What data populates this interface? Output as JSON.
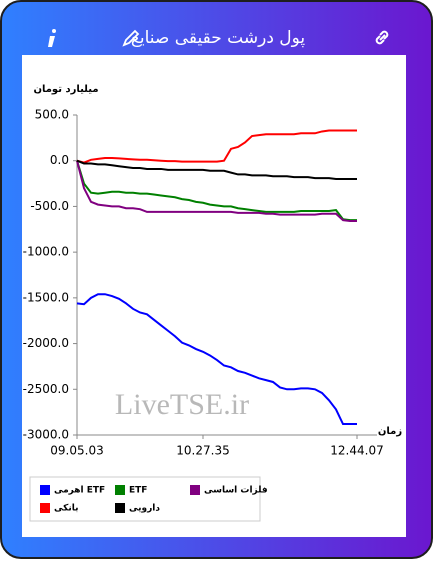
{
  "header": {
    "title": "پول درشت حقیقی صنایع"
  },
  "chart_data": {
    "type": "line",
    "y_label": "میلیارد تومان",
    "x_label": "زمان",
    "watermark": "LiveTSE.ir",
    "xlim": [
      0,
      40
    ],
    "xticks": [
      {
        "value": 0,
        "label": "09.05.03"
      },
      {
        "value": 18,
        "label": "10.27.35"
      },
      {
        "value": 40,
        "label": "12.44.07"
      }
    ],
    "ylim": [
      -3000,
      500
    ],
    "yticks": [
      {
        "value": 500,
        "label": "500.0"
      },
      {
        "value": 0,
        "label": "0.0"
      },
      {
        "value": -500,
        "label": "-500.0"
      },
      {
        "value": -1000,
        "label": "-1000.0"
      },
      {
        "value": -1500,
        "label": "-1500.0"
      },
      {
        "value": -2000,
        "label": "-2000.0"
      },
      {
        "value": -2500,
        "label": "-2500.0"
      },
      {
        "value": -3000,
        "label": "-3000.0"
      }
    ],
    "grid": false,
    "series": [
      {
        "name": "اهرمی ETF",
        "color": "#0000ff",
        "values": [
          -1560,
          -1570,
          -1500,
          -1460,
          -1460,
          -1480,
          -1510,
          -1560,
          -1620,
          -1660,
          -1680,
          -1740,
          -1800,
          -1860,
          -1920,
          -1990,
          -2020,
          -2060,
          -2090,
          -2130,
          -2180,
          -2240,
          -2260,
          -2300,
          -2320,
          -2350,
          -2380,
          -2400,
          -2420,
          -2480,
          -2500,
          -2500,
          -2490,
          -2490,
          -2500,
          -2540,
          -2620,
          -2720,
          -2880,
          -2880,
          -2880
        ]
      },
      {
        "name": "ETF",
        "color": "#008000",
        "values": [
          0,
          -250,
          -350,
          -360,
          -350,
          -340,
          -340,
          -350,
          -350,
          -360,
          -360,
          -370,
          -380,
          -390,
          -400,
          -420,
          -430,
          -450,
          -460,
          -480,
          -490,
          -500,
          -500,
          -520,
          -530,
          -540,
          -550,
          -560,
          -560,
          -560,
          -560,
          -560,
          -550,
          -550,
          -550,
          -550,
          -550,
          -540,
          -640,
          -650,
          -650
        ]
      },
      {
        "name": "فلزات اساسی",
        "color": "#800080",
        "values": [
          0,
          -300,
          -450,
          -480,
          -490,
          -500,
          -500,
          -520,
          -520,
          -530,
          -560,
          -560,
          -560,
          -560,
          -560,
          -560,
          -560,
          -560,
          -560,
          -560,
          -560,
          -560,
          -560,
          -570,
          -570,
          -570,
          -570,
          -580,
          -580,
          -590,
          -590,
          -590,
          -590,
          -590,
          -590,
          -580,
          -580,
          -580,
          -650,
          -660,
          -660
        ]
      },
      {
        "name": "بانکی",
        "color": "#ff0000",
        "values": [
          0,
          -20,
          10,
          20,
          30,
          30,
          25,
          20,
          15,
          10,
          10,
          5,
          0,
          -5,
          -5,
          -10,
          -10,
          -10,
          -10,
          -10,
          -10,
          0,
          130,
          150,
          200,
          270,
          280,
          290,
          290,
          290,
          290,
          290,
          300,
          300,
          300,
          320,
          330,
          330,
          330,
          330,
          330
        ]
      },
      {
        "name": "دارویی",
        "color": "#000000",
        "values": [
          0,
          -30,
          -30,
          -40,
          -40,
          -50,
          -60,
          -70,
          -80,
          -80,
          -90,
          -90,
          -90,
          -100,
          -100,
          -100,
          -100,
          -100,
          -100,
          -110,
          -110,
          -110,
          -130,
          -150,
          -150,
          -160,
          -160,
          -160,
          -170,
          -170,
          -170,
          -180,
          -180,
          -180,
          -190,
          -190,
          -190,
          -200,
          -200,
          -200,
          -200
        ]
      }
    ]
  }
}
